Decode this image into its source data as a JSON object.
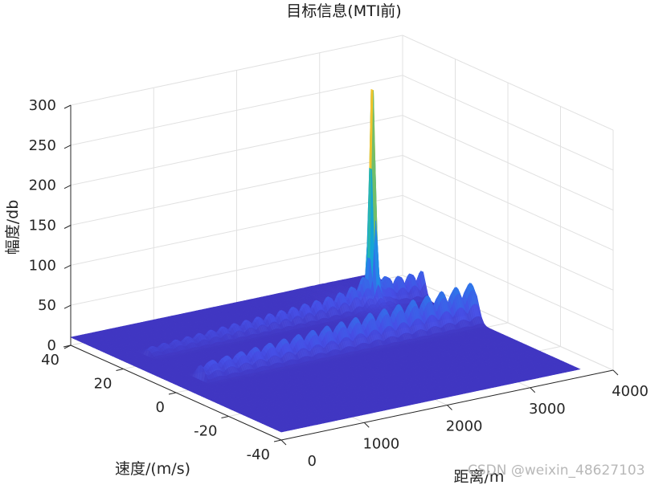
{
  "chart_data": {
    "type": "surface",
    "title": "目标信息(MTI前)",
    "xlabel": "距离/m",
    "ylabel": "速度/(m/s)",
    "zlabel": "幅度/db",
    "xlim": [
      0,
      4000
    ],
    "ylim": [
      -40,
      40
    ],
    "zlim": [
      0,
      300
    ],
    "xticks": [
      0,
      1000,
      2000,
      3000,
      4000
    ],
    "yticks": [
      -40,
      -20,
      0,
      20,
      40
    ],
    "zticks": [
      0,
      50,
      100,
      150,
      200,
      250,
      300
    ],
    "grid": true,
    "colormap": "parula",
    "surface_extent": {
      "range_m": [
        0,
        3600
      ],
      "velocity_mps": [
        -40,
        40
      ]
    },
    "peak": {
      "range_m": 3000,
      "velocity_mps": 20,
      "amplitude_db": 265
    },
    "clutter_ridge": {
      "velocity_mps": 0,
      "range_m": [
        300,
        3600
      ],
      "amplitude_db": [
        20,
        50
      ]
    },
    "secondary_ridge": {
      "velocity_mps": 20,
      "range_m": [
        300,
        3600
      ],
      "amplitude_db": [
        10,
        35
      ]
    },
    "background_level_db": 10
  },
  "watermark": "CSDN @weixin_48627103"
}
